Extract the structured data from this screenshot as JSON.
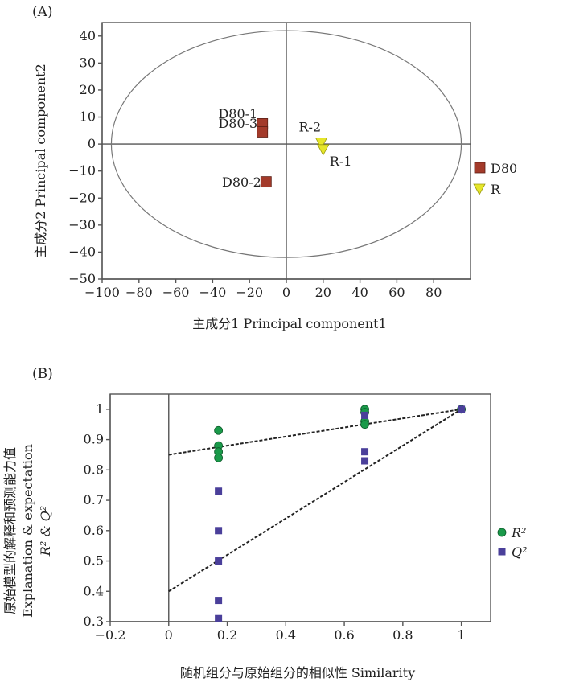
{
  "chart_data": [
    {
      "type": "scatter",
      "panel_label": "(A)",
      "xlabel": "主成分1 Principal component1",
      "ylabel": "主成分2 Principal component2",
      "xlim": [
        -100,
        100
      ],
      "ylim": [
        -50,
        45
      ],
      "xticks": [
        -100,
        -80,
        -60,
        -40,
        -20,
        0,
        20,
        40,
        60,
        80
      ],
      "yticks": [
        -50,
        -40,
        -30,
        -20,
        -10,
        0,
        10,
        20,
        30,
        40
      ],
      "ellipse": {
        "center": [
          0,
          0
        ],
        "rx": 95,
        "ry": 42
      },
      "legend": {
        "position": "right",
        "entries": [
          "D80",
          "R"
        ]
      },
      "series": [
        {
          "name": "D80",
          "marker": "square",
          "color": "#a33a2a",
          "points": [
            {
              "label": "D80-1",
              "x": -13,
              "y": 7.5
            },
            {
              "label": "D80-3",
              "x": -13,
              "y": 4.5
            },
            {
              "label": "D80-2",
              "x": -11,
              "y": -14
            }
          ]
        },
        {
          "name": "R",
          "marker": "triangle-down",
          "color": "#e6e62a",
          "points": [
            {
              "label": "R-2",
              "x": 19,
              "y": 0.5
            },
            {
              "label": "R-1",
              "x": 20,
              "y": -2
            }
          ]
        }
      ]
    },
    {
      "type": "scatter",
      "panel_label": "(B)",
      "xlabel": "随机组分与原始组分的相似性 Similarity",
      "ylabel_lines": [
        "原始模型的解释和预测能力值",
        "Explanation & expectation",
        "R² & Q²"
      ],
      "xlim": [
        -0.2,
        1.1
      ],
      "ylim": [
        0.3,
        1.05
      ],
      "xticks": [
        -0.2,
        0,
        0.2,
        0.4,
        0.6,
        0.8,
        1
      ],
      "xtick_labels": [
        "−0.2",
        "0",
        "0.2",
        "0.4",
        "0.6",
        "0.8",
        "1"
      ],
      "yticks": [
        0.3,
        0.4,
        0.5,
        0.6,
        0.7,
        0.8,
        0.9,
        1
      ],
      "ytick_labels": [
        "0.3",
        "0.4",
        "0.5",
        "0.6",
        "0.7",
        "0.8",
        "0.9",
        "1"
      ],
      "legend": {
        "position": "right",
        "entries": [
          "R²",
          "Q²"
        ]
      },
      "series": [
        {
          "name": "R²",
          "marker": "circle",
          "color": "#1a9a4a",
          "points": [
            [
              0.17,
              0.93
            ],
            [
              0.17,
              0.88
            ],
            [
              0.17,
              0.86
            ],
            [
              0.17,
              0.84
            ],
            [
              0.67,
              1.0
            ],
            [
              0.67,
              0.99
            ],
            [
              0.67,
              0.96
            ],
            [
              0.67,
              0.95
            ],
            [
              1.0,
              1.0
            ]
          ],
          "regression": {
            "x": [
              0,
              1
            ],
            "y": [
              0.85,
              1.0
            ]
          }
        },
        {
          "name": "Q²",
          "marker": "square",
          "color": "#4a3f9a",
          "points": [
            [
              0.17,
              0.73
            ],
            [
              0.17,
              0.6
            ],
            [
              0.17,
              0.5
            ],
            [
              0.17,
              0.37
            ],
            [
              0.17,
              0.31
            ],
            [
              0.67,
              0.86
            ],
            [
              0.67,
              0.83
            ],
            [
              0.67,
              0.98
            ],
            [
              1.0,
              1.0
            ]
          ],
          "regression": {
            "x": [
              0,
              1
            ],
            "y": [
              0.4,
              1.0
            ]
          }
        }
      ]
    }
  ]
}
